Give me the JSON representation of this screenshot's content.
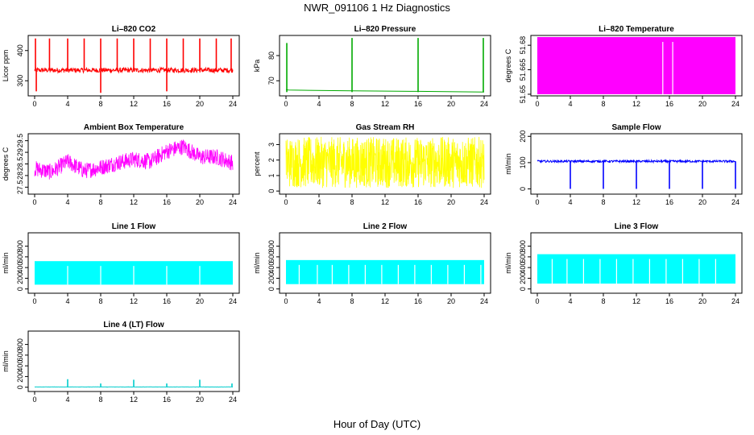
{
  "figure": {
    "title": "NWR_091106  1 Hz Diagnostics",
    "xlabel": "Hour of Day (UTC)"
  },
  "chart_data": [
    {
      "type": "line",
      "title": "Li–820 CO2",
      "ylabel": "Licor ppm",
      "color": "#ff0000",
      "xlim": [
        0,
        24
      ],
      "x_ticks": [
        "0",
        "4",
        "8",
        "12",
        "16",
        "20",
        "24"
      ],
      "ylim": [
        250,
        450
      ],
      "y_ticks": [
        {
          "v": 300,
          "label": "300"
        },
        {
          "v": 400,
          "label": "400"
        }
      ],
      "baseline": 335,
      "noise": 8,
      "spikes": [
        {
          "x": 0.1,
          "y": 440
        },
        {
          "x": 1.8,
          "y": 440
        },
        {
          "x": 4.0,
          "y": 440
        },
        {
          "x": 6.0,
          "y": 440
        },
        {
          "x": 8.0,
          "y": 260
        },
        {
          "x": 8.0,
          "y": 440
        },
        {
          "x": 10.0,
          "y": 440
        },
        {
          "x": 12.0,
          "y": 440
        },
        {
          "x": 14.0,
          "y": 440
        },
        {
          "x": 16.0,
          "y": 265
        },
        {
          "x": 16.0,
          "y": 440
        },
        {
          "x": 18.0,
          "y": 440
        },
        {
          "x": 20.0,
          "y": 440
        },
        {
          "x": 22.0,
          "y": 440
        },
        {
          "x": 23.8,
          "y": 440
        },
        {
          "x": 0.2,
          "y": 265
        }
      ]
    },
    {
      "type": "line",
      "title": "Li–820 Pressure",
      "ylabel": "kPa",
      "color": "#00aa00",
      "xlim": [
        0,
        24
      ],
      "x_ticks": [
        "0",
        "4",
        "8",
        "12",
        "16",
        "20",
        "24"
      ],
      "ylim": [
        64,
        88
      ],
      "y_ticks": [
        {
          "v": 70,
          "label": "70"
        },
        {
          "v": 80,
          "label": "80"
        }
      ],
      "segments": [
        {
          "x": [
            0.0,
            0.3,
            8.0,
            16.0,
            24.0
          ],
          "y": [
            66.5,
            66.3,
            66.0,
            65.8,
            65.5
          ]
        }
      ],
      "spikes": [
        {
          "x": 0.1,
          "y": 85
        },
        {
          "x": 8.0,
          "y": 87
        },
        {
          "x": 16.0,
          "y": 87
        },
        {
          "x": 23.9,
          "y": 87
        }
      ]
    },
    {
      "type": "area",
      "title": "Li–820 Temperature",
      "ylabel": "degrees C",
      "color": "#ff00ff",
      "xlim": [
        0,
        24
      ],
      "x_ticks": [
        "0",
        "4",
        "8",
        "12",
        "16",
        "20",
        "24"
      ],
      "ylim": [
        51.649,
        51.686
      ],
      "y_ticks": [
        {
          "v": 51.65,
          "label": "51.65"
        },
        {
          "v": 51.665,
          "label": "51.665"
        },
        {
          "v": 51.68,
          "label": "51.68"
        }
      ],
      "band": [
        51.65,
        51.685
      ],
      "gaps": [
        15.2,
        16.4
      ]
    },
    {
      "type": "line",
      "title": "Ambient Box Temperature",
      "ylabel": "degrees C",
      "color": "#ff00ff",
      "xlim": [
        0,
        24
      ],
      "x_ticks": [
        "0",
        "4",
        "8",
        "12",
        "16",
        "20",
        "24"
      ],
      "ylim": [
        27.2,
        29.8
      ],
      "y_ticks": [
        {
          "v": 27.5,
          "label": "27.5"
        },
        {
          "v": 28.0,
          "label": "28"
        },
        {
          "v": 28.5,
          "label": "28.5"
        },
        {
          "v": 29.0,
          "label": "29"
        },
        {
          "v": 29.5,
          "label": "29.5"
        }
      ],
      "trend": {
        "x": [
          0,
          2,
          4,
          6,
          8,
          10,
          12,
          14,
          16,
          18,
          20,
          22,
          24
        ],
        "y": [
          28.3,
          28.15,
          28.6,
          28.2,
          28.35,
          28.55,
          28.7,
          28.6,
          29.05,
          29.25,
          28.8,
          28.8,
          28.55
        ]
      },
      "noise": 0.35
    },
    {
      "type": "line",
      "title": "Gas Stream RH",
      "ylabel": "percent",
      "color": "#ffff00",
      "xlim": [
        0,
        24
      ],
      "x_ticks": [
        "0",
        "4",
        "8",
        "12",
        "16",
        "20",
        "24"
      ],
      "ylim": [
        -0.2,
        3.7
      ],
      "y_ticks": [
        {
          "v": 0,
          "label": "0"
        },
        {
          "v": 1,
          "label": "1"
        },
        {
          "v": 2,
          "label": "2"
        },
        {
          "v": 3,
          "label": "3"
        }
      ],
      "band": [
        0.2,
        3.5
      ]
    },
    {
      "type": "line",
      "title": "Sample Flow",
      "ylabel": "ml/min",
      "color": "#0000ff",
      "xlim": [
        0,
        24
      ],
      "x_ticks": [
        "0",
        "4",
        "8",
        "12",
        "16",
        "20",
        "24"
      ],
      "ylim": [
        -20,
        210
      ],
      "y_ticks": [
        {
          "v": 0,
          "label": "0"
        },
        {
          "v": 100,
          "label": "100"
        },
        {
          "v": 200,
          "label": "200"
        }
      ],
      "baseline": 105,
      "noise": 4,
      "dips": [
        {
          "x": 4.0,
          "y": 0
        },
        {
          "x": 8.0,
          "y": 0
        },
        {
          "x": 12.0,
          "y": 0
        },
        {
          "x": 16.0,
          "y": 0
        },
        {
          "x": 20.0,
          "y": 0
        },
        {
          "x": 24.0,
          "y": 0
        }
      ]
    },
    {
      "type": "area",
      "title": "Line 1 Flow",
      "ylabel": "ml/min",
      "color": "#00ffff",
      "xlim": [
        0,
        24
      ],
      "x_ticks": [
        "0",
        "4",
        "8",
        "12",
        "16",
        "20",
        "24"
      ],
      "ylim": [
        -80,
        1050
      ],
      "y_ticks": [
        {
          "v": 0,
          "label": "0"
        },
        {
          "v": 200,
          "label": "200"
        },
        {
          "v": 400,
          "label": "400"
        },
        {
          "v": 600,
          "label": "600"
        },
        {
          "v": 800,
          "label": "800"
        }
      ],
      "band": [
        80,
        520
      ],
      "gaps": [
        4.0,
        8.0,
        12.0,
        16.0,
        20.0
      ]
    },
    {
      "type": "area",
      "title": "Line 2 Flow",
      "ylabel": "ml/min",
      "color": "#00ffff",
      "xlim": [
        0,
        24
      ],
      "x_ticks": [
        "0",
        "4",
        "8",
        "12",
        "16",
        "20",
        "24"
      ],
      "ylim": [
        -80,
        1050
      ],
      "y_ticks": [
        {
          "v": 0,
          "label": "0"
        },
        {
          "v": 200,
          "label": "200"
        },
        {
          "v": 400,
          "label": "400"
        },
        {
          "v": 600,
          "label": "600"
        },
        {
          "v": 800,
          "label": "800"
        }
      ],
      "band": [
        90,
        540
      ],
      "gaps": [
        1.6,
        3.8,
        5.6,
        7.6,
        9.6,
        11.6,
        13.6,
        15.6,
        17.6,
        19.6,
        21.6,
        23.6
      ]
    },
    {
      "type": "area",
      "title": "Line 3 Flow",
      "ylabel": "ml/min",
      "color": "#00ffff",
      "xlim": [
        0,
        24
      ],
      "x_ticks": [
        "0",
        "4",
        "8",
        "12",
        "16",
        "20",
        "24"
      ],
      "ylim": [
        -80,
        1050
      ],
      "y_ticks": [
        {
          "v": 0,
          "label": "0"
        },
        {
          "v": 200,
          "label": "200"
        },
        {
          "v": 400,
          "label": "400"
        },
        {
          "v": 600,
          "label": "600"
        },
        {
          "v": 800,
          "label": "800"
        }
      ],
      "band": [
        100,
        650
      ],
      "gaps": [
        1.8,
        3.6,
        5.6,
        7.6,
        9.6,
        11.6,
        13.6,
        15.6,
        17.6,
        19.6,
        21.6
      ]
    },
    {
      "type": "line",
      "title": "Line 4 (LT) Flow",
      "ylabel": "ml/min",
      "color": "#00cccc",
      "xlim": [
        0,
        24
      ],
      "x_ticks": [
        "0",
        "4",
        "8",
        "12",
        "16",
        "20",
        "24"
      ],
      "ylim": [
        -80,
        1050
      ],
      "y_ticks": [
        {
          "v": 0,
          "label": "0"
        },
        {
          "v": 200,
          "label": "200"
        },
        {
          "v": 400,
          "label": "400"
        },
        {
          "v": 600,
          "label": "600"
        },
        {
          "v": 800,
          "label": "800"
        }
      ],
      "baseline": 5,
      "noise": 2,
      "spikes": [
        {
          "x": 4.0,
          "y": 150
        },
        {
          "x": 8.0,
          "y": 70
        },
        {
          "x": 12.0,
          "y": 140
        },
        {
          "x": 16.0,
          "y": 70
        },
        {
          "x": 20.0,
          "y": 140
        },
        {
          "x": 23.9,
          "y": 70
        }
      ]
    }
  ]
}
